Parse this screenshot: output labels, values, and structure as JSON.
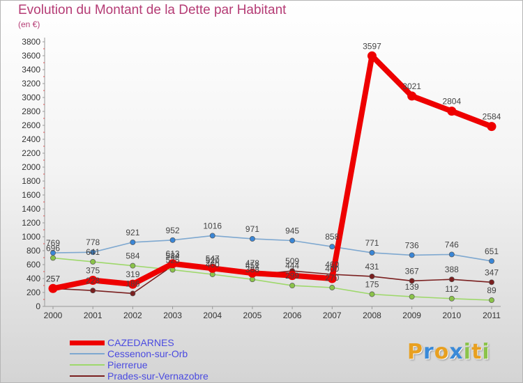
{
  "page": {
    "title": "Evolution du Montant de la Dette par Habitant",
    "subtitle": "(en €)"
  },
  "brand": {
    "logo_letters": [
      "P",
      "r",
      "o",
      "x",
      "i",
      "t",
      "i"
    ],
    "logo_colors": [
      "#e8a020",
      "#3a8ad8",
      "#e8a020",
      "#3a8ad8",
      "#8bc34a",
      "#e8a020",
      "#8bc34a"
    ]
  },
  "chart_data": {
    "type": "line",
    "title": "Evolution du Montant de la Dette par Habitant",
    "ylabel": "(en €)",
    "xlabel": "",
    "x": [
      "2000",
      "2001",
      "2002",
      "2003",
      "2004",
      "2005",
      "2006",
      "2007",
      "2008",
      "2009",
      "2010",
      "2011"
    ],
    "ylim": [
      0,
      3800
    ],
    "yticks": [
      0,
      200,
      400,
      600,
      800,
      1000,
      1200,
      1400,
      1600,
      1800,
      2000,
      2200,
      2400,
      2600,
      2800,
      3000,
      3200,
      3400,
      3600,
      3800
    ],
    "grid": false,
    "legend_position": "bottom-left",
    "series": [
      {
        "name": "Prades-sur-Vernazobre",
        "color": "#7a1f1f",
        "marker_color": "#7a1f1f",
        "values": [
          257,
          228,
          186,
          584,
          520,
          451,
          509,
          460,
          431,
          367,
          388,
          347
        ],
        "labels": [
          "257",
          "228",
          "186",
          "584",
          "520",
          "451",
          "509",
          "460",
          "431",
          "367",
          "388",
          "347"
        ]
      },
      {
        "name": "Pierrerue",
        "color": "#9ed86b",
        "marker_color": "#8bc34a",
        "values": [
          696,
          641,
          584,
          525,
          460,
          388,
          299,
          270,
          175,
          139,
          112,
          89
        ],
        "labels": [
          "696",
          "641",
          "584",
          "525",
          "460",
          "388",
          "299",
          "270",
          "175",
          "139",
          "112",
          "89"
        ]
      },
      {
        "name": "Cessenon-sur-Orb",
        "color": "#7ea8d0",
        "marker_color": "#3a86d6",
        "values": [
          769,
          778,
          921,
          952,
          1016,
          971,
          945,
          858,
          771,
          736,
          746,
          651
        ],
        "labels": [
          "769",
          "778",
          "921",
          "952",
          "1016",
          "971",
          "945",
          "858",
          "771",
          "736",
          "746",
          "651"
        ]
      },
      {
        "name": "CAZEDARNES",
        "color": "#ee0000",
        "marker_color": "#ee0000",
        "values": [
          257,
          375,
          319,
          613,
          547,
          478,
          444,
          400,
          3597,
          3021,
          2804,
          2584
        ],
        "labels": [
          "257",
          "375",
          "319",
          "613",
          "547",
          "478",
          "444",
          "400",
          "3597",
          "3021",
          "2804",
          "2584"
        ]
      }
    ]
  },
  "legend": {
    "items": [
      {
        "name": "CAZEDARNES",
        "color": "#ee0000",
        "thickness": 7
      },
      {
        "name": "Cessenon-sur-Orb",
        "color": "#7ea8d0",
        "thickness": 2
      },
      {
        "name": "Pierrerue",
        "color": "#9ed86b",
        "thickness": 2
      },
      {
        "name": "Prades-sur-Vernazobre",
        "color": "#7a1f1f",
        "thickness": 2
      }
    ]
  }
}
